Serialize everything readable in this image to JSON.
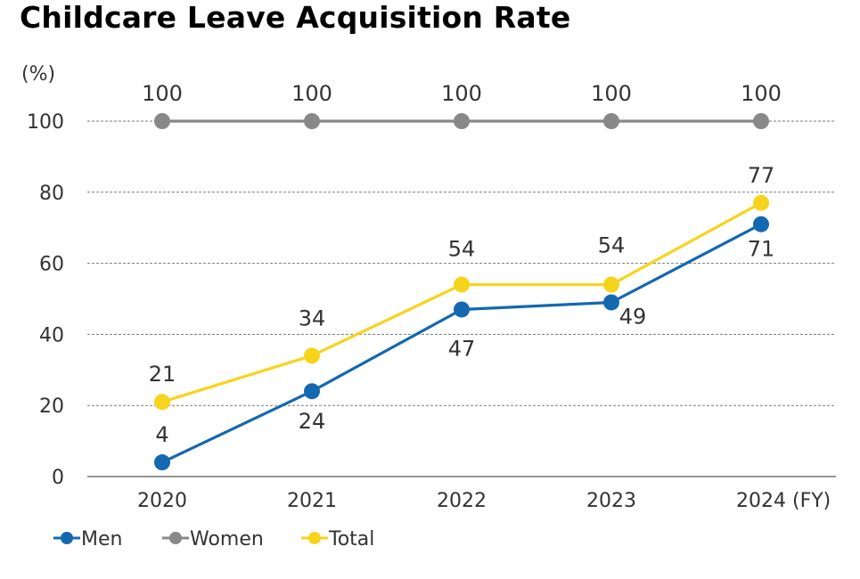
{
  "chart_data": {
    "type": "line",
    "title": "Childcare Leave Acquisition Rate",
    "y_unit_label": "(%)",
    "x_unit_label": "(FY)",
    "categories": [
      "2020",
      "2021",
      "2022",
      "2023",
      "2024"
    ],
    "ylim": [
      0,
      100
    ],
    "yticks": [
      0,
      20,
      40,
      60,
      80,
      100
    ],
    "grid": true,
    "legend_position": "bottom-left",
    "series": [
      {
        "name": "Men",
        "color": "#1468b0",
        "values": [
          4,
          24,
          47,
          49,
          71
        ]
      },
      {
        "name": "Women",
        "color": "#888888",
        "values": [
          100,
          100,
          100,
          100,
          100
        ]
      },
      {
        "name": "Total",
        "color": "#f7d41c",
        "values": [
          21,
          34,
          54,
          54,
          77
        ]
      }
    ]
  }
}
